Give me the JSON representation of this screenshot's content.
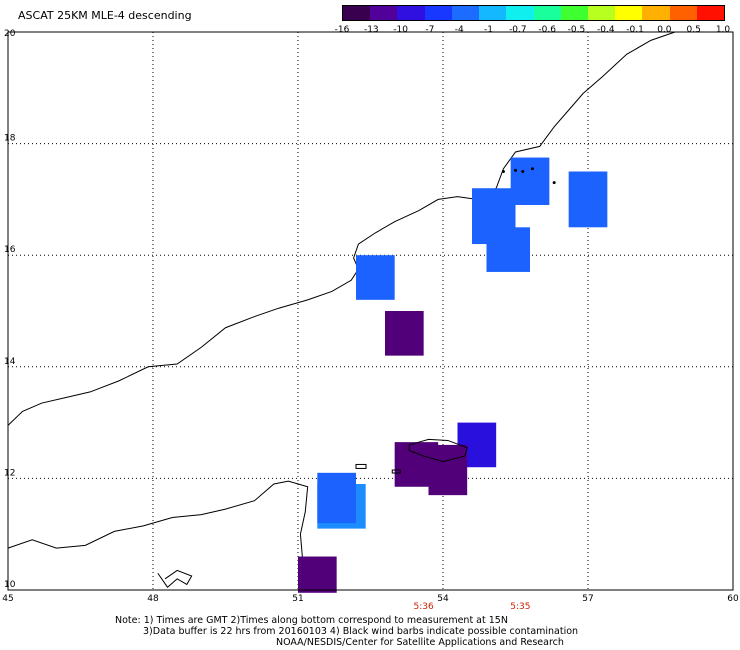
{
  "title": "ASCAT 25KM MLE-4 descending",
  "colorbar": {
    "ticks": [
      "-16",
      "-13",
      "-10",
      "-7",
      "-4",
      "-1",
      "-0.7",
      "-0.6",
      "-0.5",
      "-0.4",
      "-0.1",
      "0.0",
      "0.5",
      "1.0"
    ],
    "colors": [
      "#3a0050",
      "#52009a",
      "#3010e0",
      "#1838ff",
      "#1c6cff",
      "#14b8ff",
      "#10eeee",
      "#18ff9c",
      "#40ff30",
      "#b8ff20",
      "#ffff00",
      "#ffb000",
      "#ff6000",
      "#ff1000"
    ]
  },
  "axes": {
    "x_ticks": [
      "45",
      "48",
      "51",
      "54",
      "57",
      "60"
    ],
    "y_ticks": [
      "20",
      "18",
      "16",
      "14",
      "12",
      "10"
    ]
  },
  "time_labels": [
    {
      "lon": 53.6,
      "text": "5:36"
    },
    {
      "lon": 55.6,
      "text": "5:35"
    }
  ],
  "cells": [
    {
      "lon0": 55.4,
      "lon1": 56.2,
      "lat0": 16.9,
      "lat1": 17.75,
      "color": "#1c62ff"
    },
    {
      "lon0": 56.6,
      "lon1": 57.4,
      "lat0": 16.5,
      "lat1": 17.5,
      "color": "#1c62ff"
    },
    {
      "lon0": 54.6,
      "lon1": 55.5,
      "lat0": 16.2,
      "lat1": 17.2,
      "color": "#1c62ff"
    },
    {
      "lon0": 54.9,
      "lon1": 55.8,
      "lat0": 15.7,
      "lat1": 16.5,
      "color": "#1c62ff"
    },
    {
      "lon0": 52.2,
      "lon1": 53.0,
      "lat0": 15.2,
      "lat1": 16.0,
      "color": "#1c62ff"
    },
    {
      "lon0": 52.8,
      "lon1": 53.6,
      "lat0": 14.2,
      "lat1": 15.0,
      "color": "#52007a"
    },
    {
      "lon0": 54.3,
      "lon1": 55.1,
      "lat0": 12.2,
      "lat1": 13.0,
      "color": "#2a10dd"
    },
    {
      "lon0": 53.0,
      "lon1": 53.9,
      "lat0": 11.85,
      "lat1": 12.65,
      "color": "#52007a"
    },
    {
      "lon0": 53.7,
      "lon1": 54.5,
      "lat0": 11.7,
      "lat1": 12.6,
      "color": "#52007a"
    },
    {
      "lon0": 51.4,
      "lon1": 52.4,
      "lat0": 11.1,
      "lat1": 11.9,
      "color": "#1c8cff"
    },
    {
      "lon0": 51.4,
      "lon1": 52.2,
      "lat0": 11.2,
      "lat1": 12.1,
      "color": "#1c62ff"
    },
    {
      "lon0": 51.0,
      "lon1": 51.8,
      "lat0": 9.95,
      "lat1": 10.6,
      "color": "#52007a"
    }
  ],
  "notes": {
    "line1": "Note: 1) Times are GMT 2)Times along bottom correspond to measurement at 15N",
    "line2": "3)Data buffer is 22 hrs from 20160103 4) Black wind barbs indicate possible contamination",
    "line3": "NOAA/NESDIS/Center for Satellite Applications and Research"
  }
}
